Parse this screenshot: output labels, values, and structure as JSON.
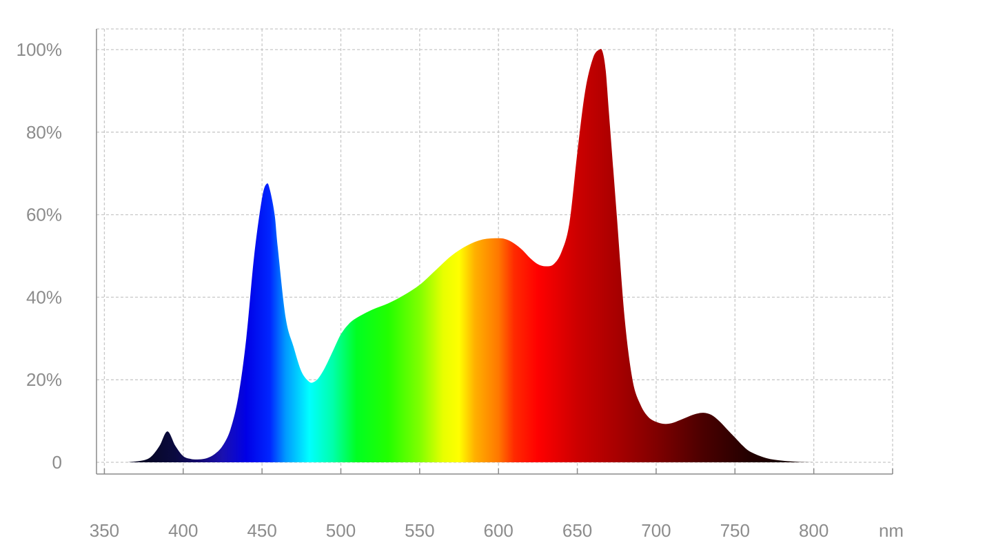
{
  "chart_data": {
    "type": "area",
    "title": "",
    "xlabel": "",
    "ylabel": "",
    "x_unit": "nm",
    "xlim": [
      345,
      850
    ],
    "ylim": [
      0,
      100
    ],
    "x_ticks": [
      350,
      400,
      450,
      500,
      550,
      600,
      650,
      700,
      750,
      800
    ],
    "y_ticks": [
      {
        "value": 0,
        "label": "0"
      },
      {
        "value": 20,
        "label": "20%"
      },
      {
        "value": 40,
        "label": "40%"
      },
      {
        "value": 60,
        "label": "60%"
      },
      {
        "value": 80,
        "label": "80%"
      },
      {
        "value": 100,
        "label": "100%"
      }
    ],
    "grid": true,
    "legend": "none",
    "fill": "wavelength spectrum gradient",
    "series": [
      {
        "x": [
          365,
          375,
          380,
          385,
          390,
          395,
          400,
          405,
          410,
          415,
          420,
          425,
          430,
          435,
          440,
          445,
          450,
          453,
          455,
          458,
          460,
          465,
          470,
          475,
          480,
          483,
          486,
          490,
          495,
          500,
          505,
          510,
          520,
          530,
          540,
          550,
          560,
          570,
          580,
          590,
          600,
          605,
          610,
          615,
          620,
          625,
          630,
          635,
          640,
          645,
          650,
          655,
          660,
          664,
          666,
          668,
          670,
          675,
          680,
          685,
          690,
          695,
          700,
          705,
          710,
          715,
          720,
          725,
          730,
          735,
          740,
          745,
          750,
          755,
          760,
          770,
          780,
          790,
          800
        ],
        "y": [
          0,
          0.5,
          1.5,
          4,
          7.5,
          4,
          1.5,
          0.8,
          0.7,
          1,
          2,
          4,
          8,
          16,
          30,
          50,
          64,
          67.5,
          66,
          60,
          52,
          35,
          28,
          22,
          19.5,
          19.5,
          20.5,
          23,
          27,
          31,
          33.5,
          35,
          37,
          38.5,
          40.5,
          43,
          46.5,
          50,
          52.5,
          54,
          54.3,
          54,
          53,
          51.5,
          49.5,
          48,
          47.5,
          48,
          51,
          58,
          75,
          90,
          98,
          100,
          99.5,
          95,
          85,
          60,
          35,
          20,
          14,
          11,
          9.8,
          9.3,
          9.5,
          10.2,
          11,
          11.7,
          12,
          11.5,
          10,
          8,
          6,
          4,
          2.5,
          1,
          0.4,
          0.1,
          0
        ]
      }
    ]
  }
}
